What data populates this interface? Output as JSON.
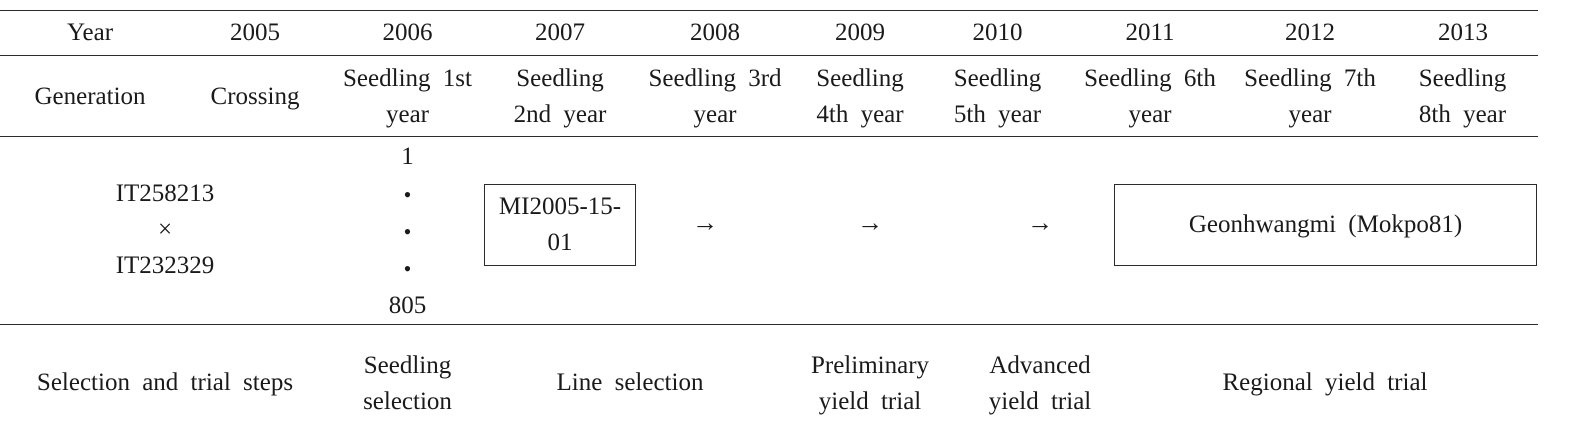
{
  "header": {
    "year_label": "Year",
    "years": [
      "2005",
      "2006",
      "2007",
      "2008",
      "2009",
      "2010",
      "2011",
      "2012",
      "2013"
    ]
  },
  "generation": {
    "label": "Generation",
    "crossing": "Crossing",
    "stages": [
      {
        "line1": "Seedling 1st",
        "line2": "year"
      },
      {
        "line1": "Seedling",
        "line2": "2nd year"
      },
      {
        "line1": "Seedling 3rd",
        "line2": "year"
      },
      {
        "line1": "Seedling",
        "line2": "4th year"
      },
      {
        "line1": "Seedling",
        "line2": "5th year"
      },
      {
        "line1": "Seedling 6th",
        "line2": "year"
      },
      {
        "line1": "Seedling 7th",
        "line2": "year"
      },
      {
        "line1": "Seedling",
        "line2": "8th year"
      }
    ]
  },
  "pedigree": {
    "parent1": "IT258213",
    "cross_symbol": "×",
    "parent2": "IT232329",
    "seedlings_start": "1",
    "dot": "•",
    "seedlings_end": "805",
    "line_name_1": "MI2005-15-",
    "line_name_2": "01",
    "arrow": "→",
    "variety": "Geonhwangmi (Mokpo81)"
  },
  "steps": {
    "label": "Selection and trial steps",
    "seedling_selection_1": "Seedling",
    "seedling_selection_2": "selection",
    "line_selection": "Line selection",
    "preliminary_1": "Preliminary",
    "preliminary_2": "yield trial",
    "advanced_1": "Advanced",
    "advanced_2": "yield trial",
    "regional": "Regional yield trial"
  }
}
